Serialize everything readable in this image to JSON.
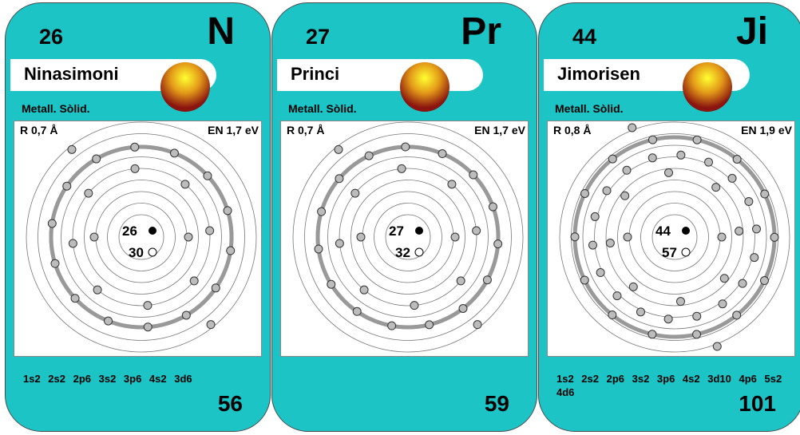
{
  "colors": {
    "card": "#1cc4c6",
    "ring": "#999999",
    "electron": "#bcbcbc"
  },
  "cards": [
    {
      "number": "26",
      "symbol": "N",
      "name": "Ninasimoni",
      "state": "Metall. Sòlid.",
      "radius": "R 0,7  Å",
      "en": "EN 1,7 eV",
      "protons": "26",
      "neutrons": "30",
      "shells": [
        2,
        8,
        14,
        2
      ],
      "config": "1s2 2s2 2p6 3s2 3p6 4s2 3d6",
      "mass": "56"
    },
    {
      "number": "27",
      "symbol": "Pr",
      "name": "Princi",
      "state": "Metall. Sòlid.",
      "radius": "R 0,7  Å",
      "en": "EN 1,7 eV",
      "protons": "27",
      "neutrons": "32",
      "shells": [
        2,
        8,
        15,
        2
      ],
      "config": "",
      "mass": "59"
    },
    {
      "number": "44",
      "symbol": "Ji",
      "name": "Jimorisen",
      "state": "Metall. Sòlid.",
      "radius": "R 0,8  Å",
      "en": "EN 1,9 eV",
      "protons": "44",
      "neutrons": "57",
      "shells": [
        2,
        8,
        18,
        14,
        2
      ],
      "config": "1s2 2s2 2p6 3s2 3p6 4s2 3d10 4p6 5s2 4d6",
      "mass": "101"
    }
  ]
}
